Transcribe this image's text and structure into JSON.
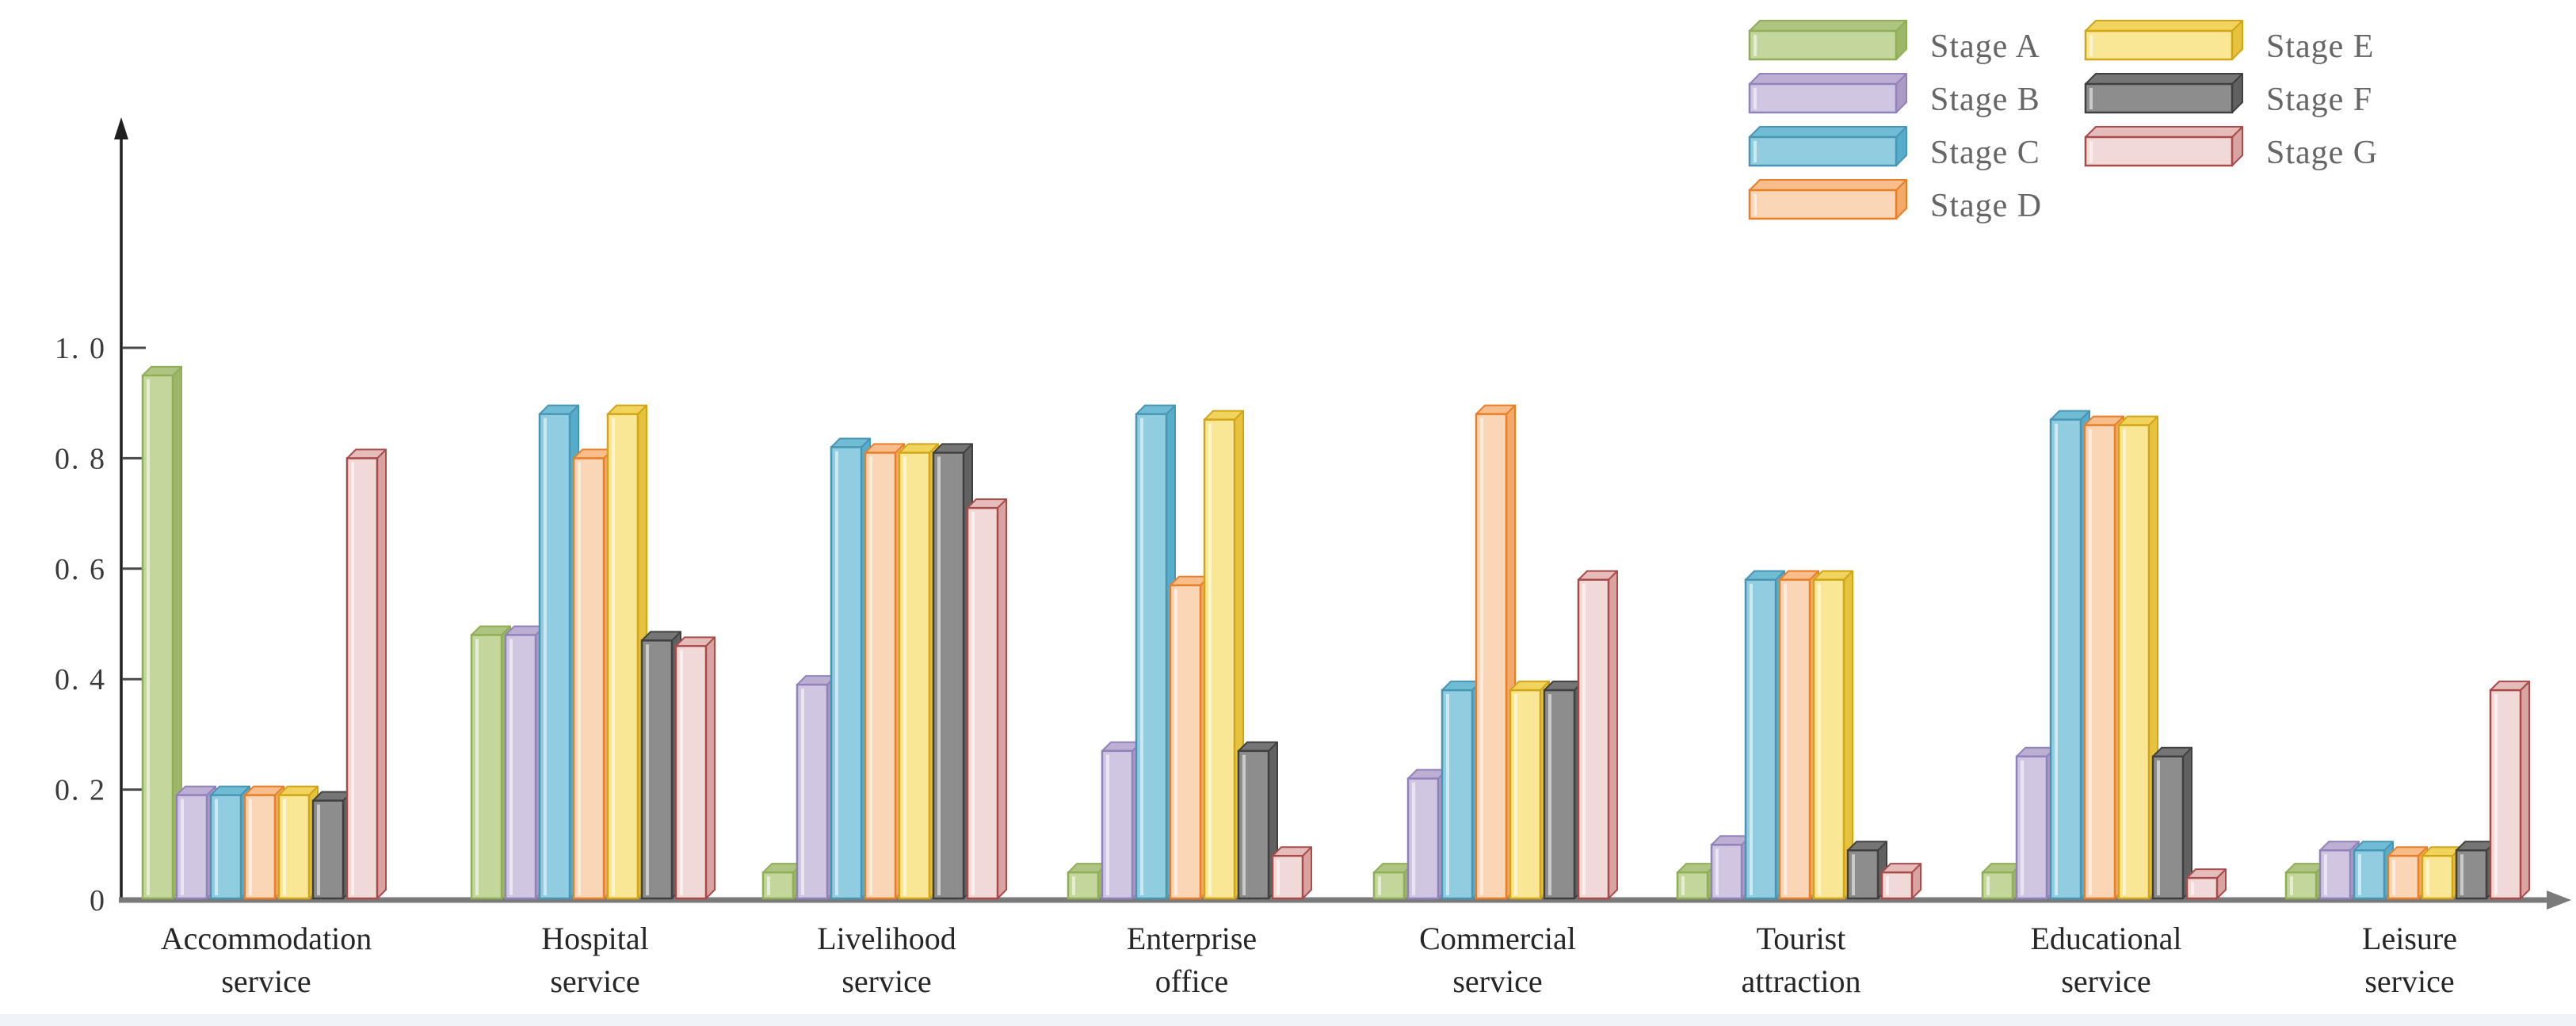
{
  "page": {
    "background": "#ffffff",
    "bottom_strip_color": "#f0f4f9"
  },
  "axis": {
    "y_axis_color": "#1f1f1f",
    "x_axis_color": "#7a7a7a",
    "tick_color": "#4a4a4a",
    "tick_label_color": "#3a3a3a",
    "category_label_color": "#262626",
    "legend_label_color": "#666666"
  },
  "chart_data": {
    "type": "bar",
    "title": "",
    "xlabel": "",
    "ylabel": "",
    "grid": false,
    "bar_style": "3d-box",
    "ylim": [
      0,
      1.0
    ],
    "legend_position": "top-right",
    "yticks": [
      {
        "value": 1.0,
        "label": "1. 0"
      },
      {
        "value": 0.8,
        "label": "0. 8"
      },
      {
        "value": 0.6,
        "label": "0. 6"
      },
      {
        "value": 0.4,
        "label": "0. 4"
      },
      {
        "value": 0.2,
        "label": "0. 2"
      },
      {
        "value": 0.0,
        "label": "0"
      }
    ],
    "categories": [
      [
        "Accommodation",
        "service"
      ],
      [
        "Hospital",
        "service"
      ],
      [
        "Livelihood",
        "service"
      ],
      [
        "Enterprise",
        "office"
      ],
      [
        "Commercial",
        "service"
      ],
      [
        "Tourist",
        "attraction"
      ],
      [
        "Educational",
        "service"
      ],
      [
        "Leisure",
        "service"
      ]
    ],
    "series": [
      {
        "name": "Stage A",
        "colors": {
          "edge": "#8fae56",
          "front": "#c3d79c",
          "top": "#aec581",
          "side": "#9cb768"
        },
        "values": [
          0.95,
          0.48,
          0.05,
          0.05,
          0.05,
          0.05,
          0.05,
          0.05
        ]
      },
      {
        "name": "Stage B",
        "colors": {
          "edge": "#9182bb",
          "front": "#d0c6e1",
          "top": "#bdafd3",
          "side": "#ab99c6"
        },
        "values": [
          0.19,
          0.48,
          0.39,
          0.27,
          0.22,
          0.1,
          0.26,
          0.09
        ]
      },
      {
        "name": "Stage C",
        "colors": {
          "edge": "#4896b6",
          "front": "#90cde0",
          "top": "#6fbcd4",
          "side": "#57adc9"
        },
        "values": [
          0.19,
          0.88,
          0.82,
          0.88,
          0.38,
          0.58,
          0.87,
          0.09
        ]
      },
      {
        "name": "Stage D",
        "colors": {
          "edge": "#e97e27",
          "front": "#fad6b6",
          "top": "#f7bd8b",
          "side": "#f3a967"
        },
        "values": [
          0.19,
          0.8,
          0.81,
          0.57,
          0.88,
          0.58,
          0.86,
          0.08
        ]
      },
      {
        "name": "Stage E",
        "colors": {
          "edge": "#d2a517",
          "front": "#f9e795",
          "top": "#f0d45e",
          "side": "#e6c33e"
        },
        "values": [
          0.19,
          0.88,
          0.81,
          0.87,
          0.38,
          0.58,
          0.86,
          0.08
        ]
      },
      {
        "name": "Stage F",
        "colors": {
          "edge": "#404040",
          "front": "#8d8d8d",
          "top": "#757575",
          "side": "#616161"
        },
        "values": [
          0.18,
          0.47,
          0.81,
          0.27,
          0.38,
          0.09,
          0.26,
          0.09
        ]
      },
      {
        "name": "Stage G",
        "colors": {
          "edge": "#a84b49",
          "front": "#f1d9d7",
          "top": "#e5bcba",
          "side": "#d9a3a1"
        },
        "values": [
          0.8,
          0.46,
          0.71,
          0.08,
          0.58,
          0.05,
          0.04,
          0.38
        ]
      }
    ],
    "legend_columns": [
      [
        0,
        1,
        2,
        3
      ],
      [
        4,
        5,
        6
      ]
    ]
  }
}
